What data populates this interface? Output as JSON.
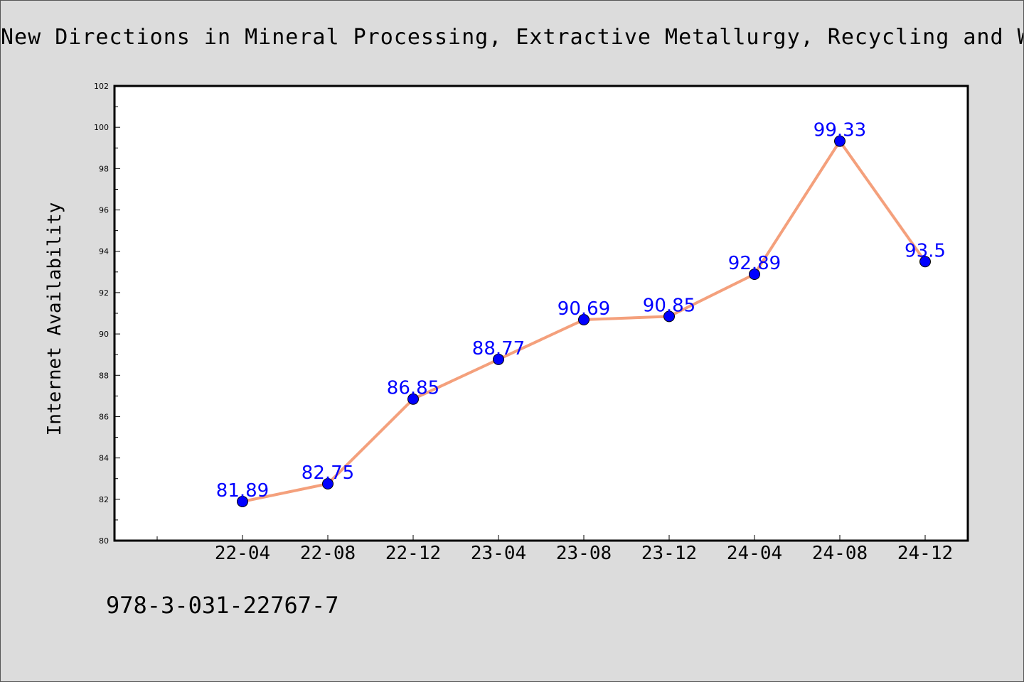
{
  "header": {
    "title": "New Directions in Mineral Processing, Extractive Metallurgy, Recycling and Waste"
  },
  "footer": {
    "isbn": "978-3-031-22767-7"
  },
  "colors": {
    "background": "#dcdcdc",
    "plot_background": "#ffffff",
    "line": "#f4a07c",
    "marker": "#0000ff",
    "data_label": "#0000ff"
  },
  "chart_data": {
    "type": "line",
    "title": "New Directions in Mineral Processing, Extractive Metallurgy, Recycling and Waste",
    "xlabel": "",
    "ylabel": "Internet Availability",
    "categories": [
      "22-04",
      "22-08",
      "22-12",
      "23-04",
      "23-08",
      "23-12",
      "24-04",
      "24-08",
      "24-12"
    ],
    "series": [
      {
        "values": [
          81.89,
          82.75,
          86.85,
          88.77,
          90.69,
          90.85,
          92.89,
          99.33,
          93.5
        ],
        "labels": [
          "81.89",
          "82.75",
          "86.85",
          "88.77",
          "90.69",
          "90.85",
          "92.89",
          "99.33",
          "93.5"
        ]
      }
    ],
    "ylim": [
      80,
      102
    ],
    "yticks": [
      "80",
      "82",
      "84",
      "86",
      "88",
      "90",
      "92",
      "94",
      "96",
      "98",
      "100",
      "102"
    ],
    "grid": false,
    "legend": "none"
  }
}
